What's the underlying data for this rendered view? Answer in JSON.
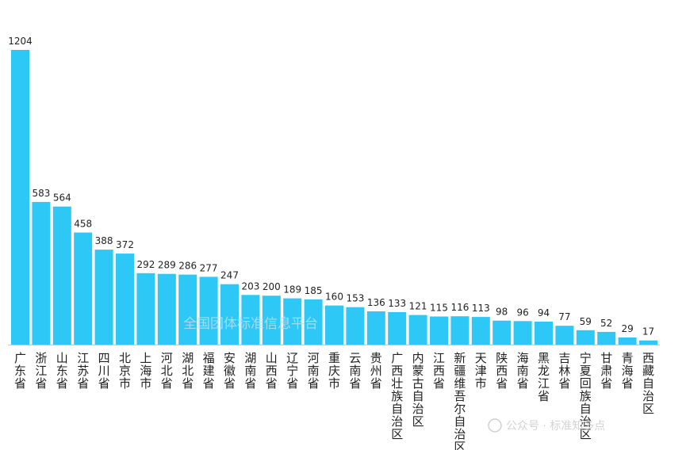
{
  "chart_data": {
    "type": "bar",
    "title": "",
    "xlabel": "",
    "ylabel": "",
    "ylim": [
      0,
      1204
    ],
    "grid": false,
    "bar_color": "#2ec8f7",
    "axis_color": "#c8c8c8",
    "categories": [
      "广东省",
      "浙江省",
      "山东省",
      "江苏省",
      "四川省",
      "北京市",
      "上海市",
      "河北省",
      "湖北省",
      "福建省",
      "安徽省",
      "湖南省",
      "山西省",
      "辽宁省",
      "河南省",
      "重庆市",
      "云南省",
      "贵州省",
      "广西壮族自治区",
      "内蒙古自治区",
      "江西省",
      "新疆维吾尔自治区",
      "天津市",
      "陕西省",
      "海南省",
      "黑龙江省",
      "吉林省",
      "宁夏回族自治区",
      "甘肃省",
      "青海省",
      "西藏自治区"
    ],
    "values": [
      1204,
      583,
      564,
      458,
      388,
      372,
      292,
      289,
      286,
      277,
      247,
      203,
      200,
      189,
      185,
      160,
      153,
      136,
      133,
      121,
      115,
      116,
      113,
      98,
      96,
      94,
      77,
      59,
      52,
      29,
      17
    ]
  },
  "watermarks": {
    "center": "全国团体标准信息平台",
    "corner": "公众号 · 标准知多点"
  }
}
